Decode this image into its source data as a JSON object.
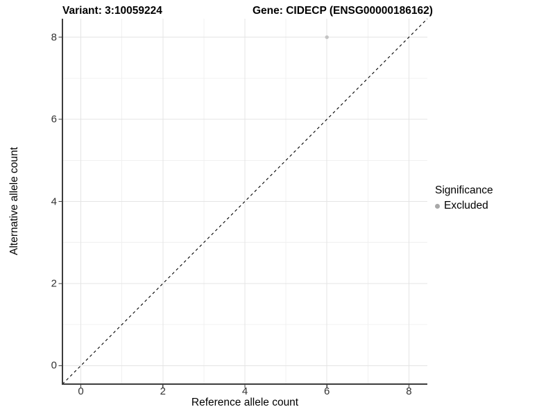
{
  "chart_data": {
    "type": "scatter",
    "title_left": "Variant: 3:10059224",
    "title_right": "Gene: CIDECP (ENSG00000186162)",
    "xlabel": "Reference allele count",
    "ylabel": "Alternative allele count",
    "xlim": [
      -0.45,
      8.45
    ],
    "ylim": [
      -0.45,
      8.45
    ],
    "x_ticks": [
      0,
      2,
      4,
      6,
      8
    ],
    "y_ticks": [
      0,
      2,
      4,
      6,
      8
    ],
    "x_minor_ticks": [
      1,
      3,
      5,
      7
    ],
    "y_minor_ticks": [
      1,
      3,
      5,
      7
    ],
    "grid": true,
    "reference_line": {
      "kind": "identity",
      "slope": 1,
      "intercept": 0,
      "style": "dashed"
    },
    "series": [
      {
        "name": "Excluded",
        "points": [
          {
            "x": 6,
            "y": 8
          }
        ],
        "color": "#c4c4c4",
        "point_radius": 2.7
      }
    ],
    "legend": {
      "title": "Significance",
      "position": "right",
      "items": [
        {
          "label": "Excluded",
          "color": "#a8a8a8"
        }
      ]
    },
    "colors": {
      "background": "#ffffff",
      "grid_major": "#e4e4e4",
      "grid_minor": "#f0f0f0",
      "axis_line": "#3c3c3c",
      "tick_mark": "#3c3c3c",
      "tick_label": "#333333",
      "title": "#000000",
      "reference_line": "#000000"
    }
  }
}
